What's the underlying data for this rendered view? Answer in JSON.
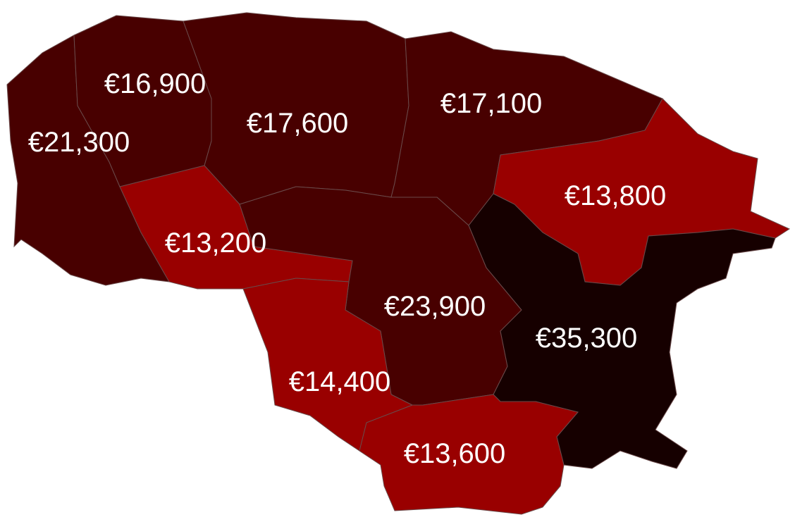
{
  "chart_data": {
    "type": "choropleth",
    "colors": {
      "low": "#990000",
      "mid": "#480000",
      "high": "#160000",
      "border": "#6a4a4a"
    },
    "regions": [
      {
        "value": 21300,
        "label": "€21,300",
        "color": "#480000"
      },
      {
        "value": 16900,
        "label": "€16,900",
        "color": "#480000"
      },
      {
        "value": 17600,
        "label": "€17,600",
        "color": "#480000"
      },
      {
        "value": 17100,
        "label": "€17,100",
        "color": "#480000"
      },
      {
        "value": 13800,
        "label": "€13,800",
        "color": "#990000"
      },
      {
        "value": 13200,
        "label": "€13,200",
        "color": "#990000"
      },
      {
        "value": 23900,
        "label": "€23,900",
        "color": "#480000"
      },
      {
        "value": 35300,
        "label": "€35,300",
        "color": "#160000"
      },
      {
        "value": 14400,
        "label": "€14,400",
        "color": "#990000"
      },
      {
        "value": 13600,
        "label": "€13,600",
        "color": "#990000"
      }
    ]
  }
}
